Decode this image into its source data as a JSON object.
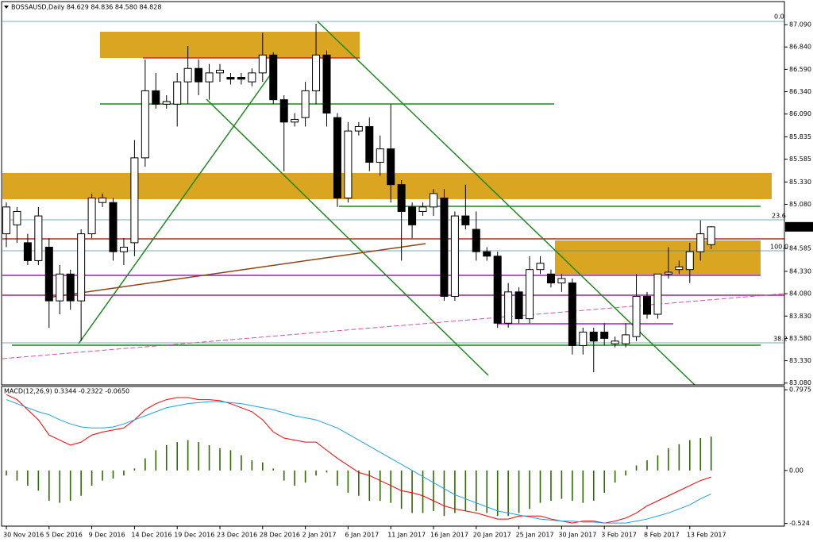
{
  "chart_data": [
    {
      "type": "candlestick",
      "title": "BOSSAUSD,Daily  84.629 84.836 84.580 84.828",
      "categories": [
        "30 Nov 2016",
        null,
        null,
        null,
        "5 Dec 2016",
        null,
        null,
        null,
        "9 Dec 2016",
        null,
        null,
        null,
        "14 Dec 2016",
        null,
        null,
        null,
        "19 Dec 2016",
        null,
        null,
        null,
        "23 Dec 2016",
        null,
        null,
        null,
        "28 Dec 2016",
        null,
        null,
        null,
        "2 Jan 2017",
        null,
        null,
        null,
        "6 Jan 2017",
        null,
        null,
        null,
        "11 Jan 2017",
        null,
        null,
        null,
        "16 Jan 2017",
        null,
        null,
        null,
        "20 Jan 2017",
        null,
        null,
        null,
        "25 Jan 2017",
        null,
        null,
        null,
        "30 Jan 2017",
        null,
        null,
        null,
        "3 Feb 2017",
        null,
        null,
        null,
        "8 Feb 2017",
        null,
        null,
        null,
        "13 Feb 2017",
        null,
        null
      ],
      "open": [
        84.75,
        84.85,
        84.65,
        84.45,
        84.6,
        84.0,
        84.3,
        84.0,
        84.75,
        85.1,
        85.1,
        84.55,
        84.65,
        85.6,
        86.35,
        86.2,
        86.2,
        86.45,
        86.6,
        86.45,
        86.55,
        86.5,
        86.5,
        86.45,
        86.55,
        86.75,
        86.25,
        86.0,
        86.05,
        86.35,
        86.75,
        86.05,
        85.15,
        85.9,
        85.95,
        85.55,
        85.7,
        85.3,
        85.05,
        85.0,
        85.05,
        85.15,
        84.05,
        84.95,
        84.8,
        84.55,
        84.5,
        83.75,
        84.1,
        83.8,
        84.35,
        84.3,
        84.2,
        84.2,
        83.5,
        83.65,
        83.65,
        83.52,
        83.52,
        83.6,
        84.05,
        83.85,
        84.3,
        84.35,
        84.35,
        84.55,
        84.629
      ],
      "high": [
        85.1,
        85.05,
        84.75,
        85.05,
        84.7,
        84.4,
        84.35,
        84.8,
        85.2,
        85.2,
        85.15,
        84.7,
        85.8,
        86.7,
        86.55,
        86.3,
        86.55,
        86.85,
        86.7,
        86.65,
        86.65,
        86.55,
        86.55,
        86.6,
        87.0,
        86.78,
        86.3,
        86.1,
        86.45,
        87.1,
        86.8,
        86.1,
        86.0,
        86.0,
        86.05,
        85.85,
        86.2,
        85.35,
        85.1,
        85.1,
        85.25,
        85.25,
        85.0,
        85.3,
        85.0,
        84.6,
        84.55,
        84.2,
        84.15,
        84.5,
        84.5,
        84.35,
        84.3,
        84.25,
        83.7,
        83.7,
        83.75,
        83.6,
        83.75,
        84.3,
        84.1,
        84.3,
        84.6,
        84.45,
        84.65,
        84.9,
        84.836
      ],
      "low": [
        84.6,
        84.65,
        84.4,
        84.4,
        83.7,
        83.85,
        83.9,
        83.55,
        84.7,
        85.05,
        84.45,
        84.4,
        84.5,
        85.5,
        86.15,
        86.15,
        85.95,
        86.2,
        86.3,
        86.25,
        86.45,
        86.42,
        86.42,
        86.4,
        86.45,
        86.2,
        85.45,
        85.95,
        85.95,
        86.2,
        85.95,
        85.05,
        85.1,
        85.85,
        85.45,
        85.4,
        85.1,
        84.45,
        84.7,
        84.95,
        84.95,
        84.0,
        84.0,
        84.8,
        84.45,
        84.45,
        83.7,
        83.7,
        83.75,
        83.75,
        84.3,
        84.15,
        84.1,
        83.4,
        83.4,
        83.2,
        83.5,
        83.48,
        83.48,
        83.55,
        83.8,
        83.8,
        84.25,
        84.3,
        84.2,
        84.45,
        84.58
      ],
      "close": [
        85.05,
        85.0,
        84.45,
        84.95,
        84.0,
        84.3,
        84.0,
        84.75,
        85.15,
        85.15,
        84.55,
        84.6,
        85.6,
        86.35,
        86.2,
        86.23,
        86.45,
        86.6,
        86.45,
        86.55,
        86.58,
        86.48,
        86.48,
        86.55,
        86.75,
        86.25,
        86.0,
        86.03,
        86.35,
        86.75,
        86.1,
        85.15,
        85.9,
        85.95,
        85.55,
        85.7,
        85.3,
        85.0,
        84.85,
        85.05,
        85.2,
        84.05,
        84.95,
        84.85,
        84.55,
        84.5,
        83.75,
        84.1,
        83.8,
        84.35,
        84.42,
        84.2,
        84.25,
        83.5,
        83.65,
        83.55,
        83.58,
        83.55,
        83.62,
        84.05,
        83.85,
        84.3,
        84.32,
        84.38,
        84.55,
        84.75,
        84.828
      ],
      "up_color": "#ffffff",
      "down_color": "#000000",
      "ylim": [
        83.06,
        87.33
      ],
      "yticks": [
        {
          "value": 87.09,
          "label": "87.090"
        },
        {
          "value": 86.84,
          "label": "86.840"
        },
        {
          "value": 86.59,
          "label": "86.590"
        },
        {
          "value": 86.34,
          "label": "86.340"
        },
        {
          "value": 86.09,
          "label": "86.090"
        },
        85.835,
        85.585,
        {
          "value": 85.33,
          "label": "85.330"
        },
        {
          "value": 85.08,
          "label": "85.080"
        },
        84.585,
        {
          "value": 84.33,
          "label": "84.330"
        },
        {
          "value": 84.08,
          "label": "84.080"
        },
        {
          "value": 83.83,
          "label": "83.830"
        },
        {
          "value": 83.58,
          "label": "83.580"
        },
        {
          "value": 83.33,
          "label": "83.330"
        },
        {
          "value": 83.08,
          "label": "83.080"
        }
      ],
      "last_price": 84.828,
      "annotations": [
        "0.0",
        "23.6",
        "100.0",
        "38.2"
      ]
    },
    {
      "type": "macd",
      "title": "MACD(12,26,9) 0.3344 -0.2322 -0.0650",
      "series": [
        {
          "style": "histogram",
          "color": "#2e6b00",
          "values": [
            -0.05,
            -0.1,
            -0.15,
            -0.2,
            -0.3,
            -0.32,
            -0.3,
            -0.25,
            -0.15,
            -0.1,
            -0.08,
            -0.05,
            0.02,
            0.12,
            0.2,
            0.25,
            0.28,
            0.3,
            0.28,
            0.25,
            0.22,
            0.2,
            0.15,
            0.1,
            0.08,
            0.02,
            -0.1,
            -0.15,
            -0.12,
            -0.05,
            -0.02,
            -0.15,
            -0.22,
            -0.25,
            -0.3,
            -0.3,
            -0.32,
            -0.38,
            -0.42,
            -0.42,
            -0.4,
            -0.45,
            -0.42,
            -0.4,
            -0.4,
            -0.42,
            -0.45,
            -0.45,
            -0.42,
            -0.38,
            -0.32,
            -0.3,
            -0.28,
            -0.3,
            -0.32,
            -0.3,
            -0.22,
            -0.12,
            -0.05,
            0.05,
            0.1,
            0.15,
            0.22,
            0.26,
            0.3,
            0.32,
            0.3344
          ]
        },
        {
          "style": "line",
          "color": "#ff0000",
          "values": [
            0.75,
            0.7,
            0.6,
            0.5,
            0.35,
            0.3,
            0.25,
            0.28,
            0.35,
            0.38,
            0.4,
            0.42,
            0.5,
            0.6,
            0.66,
            0.7,
            0.72,
            0.72,
            0.7,
            0.7,
            0.69,
            0.66,
            0.62,
            0.58,
            0.5,
            0.38,
            0.32,
            0.3,
            0.28,
            0.28,
            0.2,
            0.12,
            0.05,
            -0.02,
            -0.05,
            -0.1,
            -0.15,
            -0.2,
            -0.22,
            -0.25,
            -0.3,
            -0.35,
            -0.38,
            -0.4,
            -0.42,
            -0.45,
            -0.48,
            -0.48,
            -0.45,
            -0.45,
            -0.45,
            -0.48,
            -0.5,
            -0.52,
            -0.5,
            -0.5,
            -0.52,
            -0.5,
            -0.47,
            -0.42,
            -0.35,
            -0.3,
            -0.25,
            -0.2,
            -0.15,
            -0.1,
            -0.065
          ]
        },
        {
          "style": "line",
          "color": "#1ea0e0",
          "values": [
            0.7,
            0.66,
            0.62,
            0.58,
            0.55,
            0.5,
            0.46,
            0.43,
            0.42,
            0.42,
            0.43,
            0.46,
            0.5,
            0.54,
            0.58,
            0.62,
            0.64,
            0.66,
            0.67,
            0.68,
            0.68,
            0.67,
            0.66,
            0.64,
            0.62,
            0.6,
            0.57,
            0.54,
            0.52,
            0.5,
            0.46,
            0.42,
            0.36,
            0.3,
            0.24,
            0.18,
            0.12,
            0.06,
            0.0,
            -0.06,
            -0.12,
            -0.18,
            -0.24,
            -0.28,
            -0.32,
            -0.36,
            -0.4,
            -0.42,
            -0.44,
            -0.46,
            -0.48,
            -0.49,
            -0.5,
            -0.5,
            -0.51,
            -0.51,
            -0.52,
            -0.52,
            -0.52,
            -0.5,
            -0.48,
            -0.45,
            -0.42,
            -0.38,
            -0.34,
            -0.28,
            -0.2322
          ]
        }
      ],
      "ylim": [
        -0.55,
        0.83
      ],
      "yticks": [
        0.7975,
        {
          "value": 0,
          "label": "0.00"
        },
        -0.524
      ]
    }
  ]
}
